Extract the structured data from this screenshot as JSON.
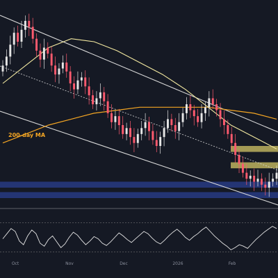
{
  "chart_data": {
    "type": "candlestick",
    "annotations": {
      "ma200_label": "200-day MA"
    },
    "x_ticks": [
      "Oct",
      "Nov",
      "Dec",
      "2026",
      "Feb"
    ],
    "colors": {
      "background": "#151924",
      "up": "#e6e6e6",
      "down": "#ff5a6e",
      "ma200": "#f5a623",
      "ma_fast": "#f3e9a1",
      "channel": "#d8d8d8",
      "support_zone": "#2a3f8f",
      "resistance_zone": "#f0e070",
      "rsi": "#e6e6e6"
    },
    "price_series": {
      "candles_close": [
        118,
        121,
        125,
        129,
        126,
        130,
        133,
        131,
        127,
        123,
        120,
        124,
        122,
        118,
        115,
        117,
        119,
        116,
        112,
        110,
        113,
        114,
        111,
        108,
        105,
        107,
        109,
        106,
        102,
        99,
        101,
        98,
        95,
        97,
        94,
        92,
        95,
        97,
        99,
        96,
        93,
        91,
        94,
        97,
        100,
        98,
        96,
        99,
        102,
        105,
        103,
        101,
        99,
        102,
        104,
        107,
        105,
        103,
        100,
        98,
        95,
        92,
        88,
        85,
        82,
        80,
        81,
        79,
        80,
        78,
        77,
        79,
        80,
        82
      ]
    },
    "ma200": [
      92,
      95,
      98,
      100,
      102,
      103,
      104,
      104,
      104,
      104,
      103,
      102,
      100
    ],
    "ma_fast": [
      112,
      118,
      124,
      127,
      126,
      123,
      119,
      115,
      110,
      104,
      98,
      94,
      90
    ],
    "support_zones": [
      {
        "low": 77,
        "high": 79
      },
      {
        "low": 73.5,
        "high": 75.5
      }
    ],
    "resistance_zones": [
      {
        "low": 89,
        "high": 91
      },
      {
        "low": 83.5,
        "high": 85.5
      }
    ],
    "rsi": [
      48,
      55,
      62,
      58,
      45,
      40,
      52,
      60,
      55,
      42,
      38,
      47,
      52,
      44,
      36,
      41,
      50,
      57,
      53,
      46,
      40,
      45,
      51,
      48,
      42,
      39,
      44,
      50,
      56,
      52,
      47,
      43,
      48,
      53,
      58,
      55,
      49,
      44,
      41,
      46,
      52,
      57,
      61,
      56,
      50,
      46,
      51,
      55,
      60,
      64,
      58,
      52,
      47,
      42,
      38,
      33,
      36,
      40,
      38,
      35,
      41,
      47,
      52,
      57,
      61,
      65,
      62
    ]
  }
}
